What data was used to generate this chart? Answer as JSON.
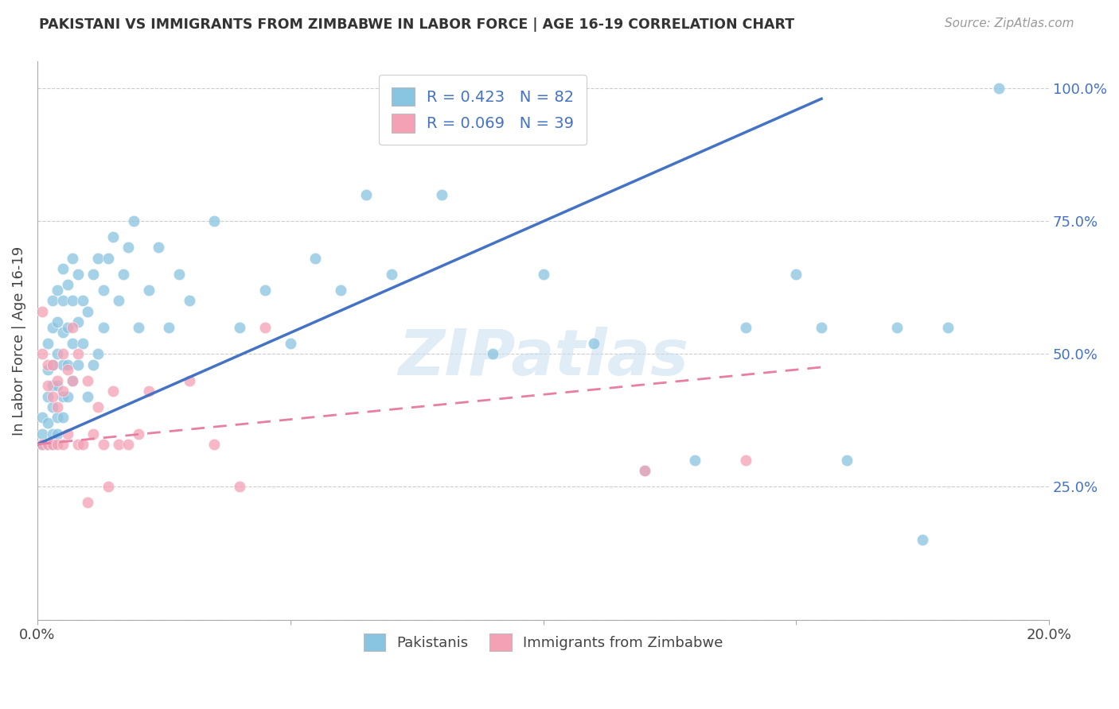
{
  "title": "PAKISTANI VS IMMIGRANTS FROM ZIMBABWE IN LABOR FORCE | AGE 16-19 CORRELATION CHART",
  "source": "Source: ZipAtlas.com",
  "ylabel": "In Labor Force | Age 16-19",
  "x_min": 0.0,
  "x_max": 0.2,
  "y_min": 0.0,
  "y_max": 1.05,
  "blue_color": "#89c4e1",
  "pink_color": "#f4a0b5",
  "blue_line_color": "#4472c4",
  "pink_line_color": "#e87fa0",
  "R_blue": 0.423,
  "N_blue": 82,
  "R_pink": 0.069,
  "N_pink": 39,
  "legend_label_blue": "Pakistanis",
  "legend_label_pink": "Immigrants from Zimbabwe",
  "watermark": "ZIPatlas",
  "blue_line_x0": 0.0,
  "blue_line_y0": 0.33,
  "blue_line_x1": 0.155,
  "blue_line_y1": 0.98,
  "pink_line_x0": 0.0,
  "pink_line_y0": 0.33,
  "pink_line_x1": 0.155,
  "pink_line_y1": 0.475,
  "pakistanis_x": [
    0.001,
    0.001,
    0.001,
    0.002,
    0.002,
    0.002,
    0.002,
    0.002,
    0.003,
    0.003,
    0.003,
    0.003,
    0.003,
    0.003,
    0.003,
    0.004,
    0.004,
    0.004,
    0.004,
    0.004,
    0.004,
    0.005,
    0.005,
    0.005,
    0.005,
    0.005,
    0.005,
    0.006,
    0.006,
    0.006,
    0.006,
    0.007,
    0.007,
    0.007,
    0.007,
    0.008,
    0.008,
    0.008,
    0.009,
    0.009,
    0.01,
    0.01,
    0.011,
    0.011,
    0.012,
    0.012,
    0.013,
    0.013,
    0.014,
    0.015,
    0.016,
    0.017,
    0.018,
    0.019,
    0.02,
    0.022,
    0.024,
    0.026,
    0.028,
    0.03,
    0.035,
    0.04,
    0.045,
    0.05,
    0.055,
    0.06,
    0.065,
    0.07,
    0.08,
    0.09,
    0.1,
    0.11,
    0.12,
    0.13,
    0.14,
    0.15,
    0.155,
    0.16,
    0.17,
    0.175,
    0.18,
    0.19
  ],
  "pakistanis_y": [
    0.33,
    0.35,
    0.38,
    0.33,
    0.37,
    0.42,
    0.47,
    0.52,
    0.33,
    0.35,
    0.4,
    0.44,
    0.48,
    0.55,
    0.6,
    0.35,
    0.38,
    0.44,
    0.5,
    0.56,
    0.62,
    0.38,
    0.42,
    0.48,
    0.54,
    0.6,
    0.66,
    0.42,
    0.48,
    0.55,
    0.63,
    0.45,
    0.52,
    0.6,
    0.68,
    0.48,
    0.56,
    0.65,
    0.52,
    0.6,
    0.42,
    0.58,
    0.48,
    0.65,
    0.5,
    0.68,
    0.55,
    0.62,
    0.68,
    0.72,
    0.6,
    0.65,
    0.7,
    0.75,
    0.55,
    0.62,
    0.7,
    0.55,
    0.65,
    0.6,
    0.75,
    0.55,
    0.62,
    0.52,
    0.68,
    0.62,
    0.8,
    0.65,
    0.8,
    0.5,
    0.65,
    0.52,
    0.28,
    0.3,
    0.55,
    0.65,
    0.55,
    0.3,
    0.55,
    0.15,
    0.55,
    1.0
  ],
  "zimbabwe_x": [
    0.001,
    0.001,
    0.001,
    0.002,
    0.002,
    0.002,
    0.003,
    0.003,
    0.003,
    0.004,
    0.004,
    0.004,
    0.005,
    0.005,
    0.005,
    0.006,
    0.006,
    0.007,
    0.007,
    0.008,
    0.008,
    0.009,
    0.01,
    0.01,
    0.011,
    0.012,
    0.013,
    0.014,
    0.015,
    0.016,
    0.018,
    0.02,
    0.022,
    0.03,
    0.035,
    0.04,
    0.045,
    0.12,
    0.14
  ],
  "zimbabwe_y": [
    0.58,
    0.5,
    0.33,
    0.48,
    0.44,
    0.33,
    0.48,
    0.42,
    0.33,
    0.45,
    0.4,
    0.33,
    0.5,
    0.43,
    0.33,
    0.47,
    0.35,
    0.45,
    0.55,
    0.5,
    0.33,
    0.33,
    0.45,
    0.22,
    0.35,
    0.4,
    0.33,
    0.25,
    0.43,
    0.33,
    0.33,
    0.35,
    0.43,
    0.45,
    0.33,
    0.25,
    0.55,
    0.28,
    0.3
  ],
  "background_color": "#ffffff",
  "grid_color": "#cccccc"
}
